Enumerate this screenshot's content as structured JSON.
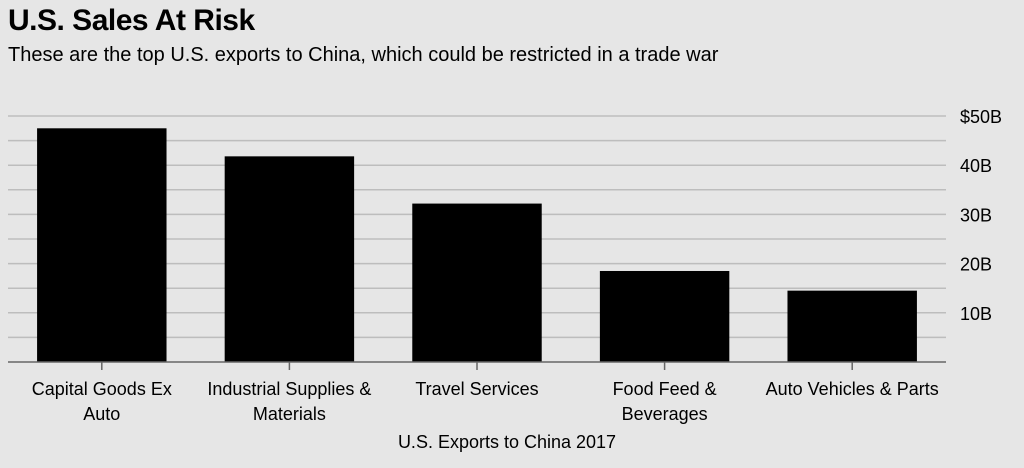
{
  "chart_data": {
    "type": "bar",
    "title": "U.S. Sales At Risk",
    "subtitle": "These are the top U.S. exports to China, which could be restricted in a trade war",
    "xlabel": "U.S. Exports to China 2017",
    "ylabel": "",
    "categories": [
      [
        "Capital Goods Ex",
        "Auto"
      ],
      [
        "Industrial Supplies &",
        "Materials"
      ],
      [
        "Travel Services"
      ],
      [
        "Food Feed &",
        "Beverages"
      ],
      [
        "Auto Vehicles & Parts"
      ]
    ],
    "values": [
      47.5,
      41.8,
      32.2,
      18.5,
      14.5
    ],
    "ylim": [
      0,
      50
    ],
    "yticks": [
      10,
      20,
      30,
      40,
      50
    ],
    "ytick_labels": [
      "10B",
      "20B",
      "30B",
      "40B",
      "$50B"
    ],
    "grid": true,
    "bar_color": "#000000",
    "grid_color": "#bdbdbd",
    "background": "#e6e6e6"
  }
}
